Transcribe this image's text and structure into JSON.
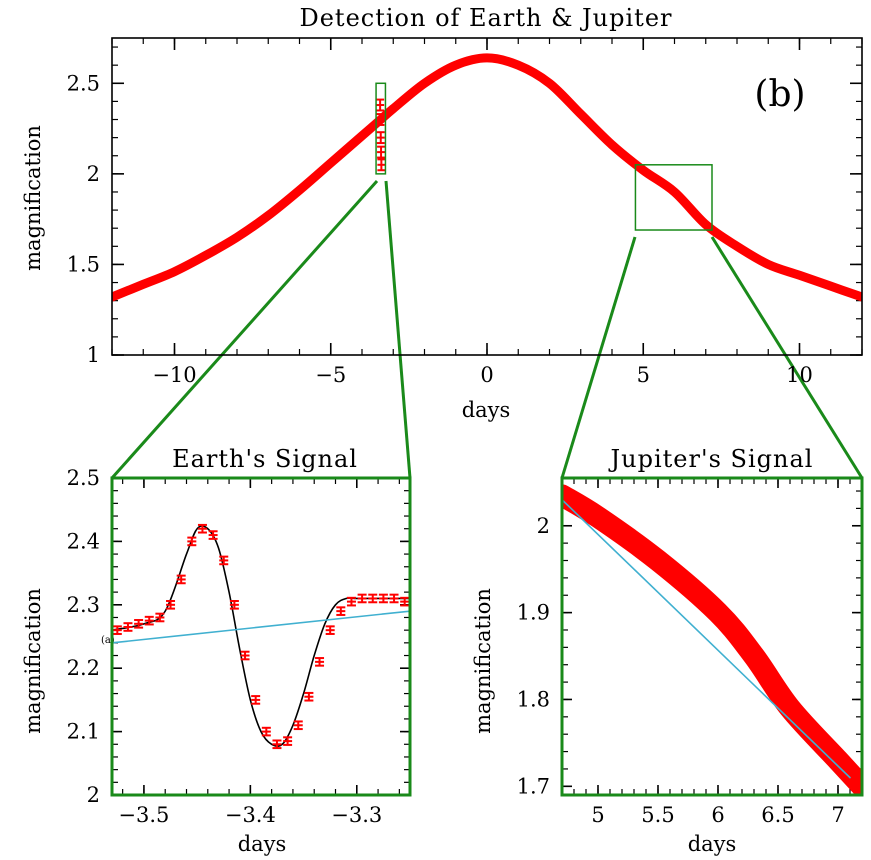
{
  "chart_data": [
    {
      "type": "line",
      "title": "Detection of Earth & Jupiter",
      "panel_label": "(b)",
      "xlabel": "days",
      "ylabel": "magnification",
      "xlim": [
        -12,
        12
      ],
      "ylim": [
        1,
        2.75
      ],
      "xticks": [
        -10,
        -5,
        0,
        5,
        10
      ],
      "xtick_labels": [
        "−10",
        "−5",
        "0",
        "5",
        "10"
      ],
      "yticks": [
        1,
        1.5,
        2,
        2.5
      ],
      "ytick_labels": [
        "1",
        "1.5",
        "2",
        "2.5"
      ],
      "series": [
        {
          "color": "#ff0000",
          "x": [
            -12,
            -11,
            -10,
            -9,
            -8,
            -7,
            -6,
            -5,
            -4,
            -3.4,
            -3,
            -2,
            -1,
            0,
            1,
            2,
            3,
            4,
            5,
            6,
            7,
            8,
            9,
            10,
            11,
            12
          ],
          "y": [
            1.32,
            1.39,
            1.46,
            1.55,
            1.65,
            1.77,
            1.91,
            2.06,
            2.21,
            2.3,
            2.36,
            2.5,
            2.6,
            2.64,
            2.6,
            2.5,
            2.33,
            2.16,
            2.02,
            1.9,
            1.72,
            1.6,
            1.5,
            1.44,
            1.38,
            1.32
          ]
        }
      ],
      "data_points": {
        "x": [
          -3.42,
          -3.41,
          -3.4,
          -3.39,
          -3.38
        ],
        "y": [
          2.38,
          2.3,
          2.2,
          2.12,
          2.05
        ]
      },
      "zoom_boxes": [
        {
          "x": [
            -3.55,
            -3.25
          ],
          "y": [
            2.0,
            2.5
          ]
        },
        {
          "x": [
            4.75,
            7.2
          ],
          "y": [
            1.69,
            2.05
          ]
        }
      ]
    },
    {
      "type": "line",
      "title": "Earth's Signal",
      "annotation": "(a)",
      "xlabel": "days",
      "ylabel": "magnification",
      "xlim": [
        -3.53,
        -3.25
      ],
      "ylim": [
        2.0,
        2.5
      ],
      "xticks": [
        -3.5,
        -3.4,
        -3.3
      ],
      "xtick_labels": [
        "−3.5",
        "−3.4",
        "−3.3"
      ],
      "yticks": [
        2,
        2.1,
        2.2,
        2.3,
        2.4,
        2.5
      ],
      "ytick_labels": [
        "2",
        "2.1",
        "2.2",
        "2.3",
        "2.4",
        "2.5"
      ],
      "series": [
        {
          "color": "#000000",
          "x": [
            -3.53,
            -3.5,
            -3.48,
            -3.46,
            -3.45,
            -3.44,
            -3.43,
            -3.42,
            -3.41,
            -3.4,
            -3.39,
            -3.38,
            -3.37,
            -3.36,
            -3.35,
            -3.34,
            -3.33,
            -3.32,
            -3.31,
            -3.3,
            -3.28,
            -3.25
          ],
          "y": [
            2.26,
            2.27,
            2.29,
            2.38,
            2.42,
            2.42,
            2.39,
            2.32,
            2.23,
            2.15,
            2.1,
            2.08,
            2.08,
            2.11,
            2.16,
            2.22,
            2.27,
            2.3,
            2.31,
            2.31,
            2.31,
            2.31
          ]
        },
        {
          "color": "#40b0d0",
          "x": [
            -3.53,
            -3.25
          ],
          "y": [
            2.24,
            2.29
          ]
        }
      ],
      "data_points": {
        "x": [
          -3.525,
          -3.515,
          -3.505,
          -3.495,
          -3.485,
          -3.475,
          -3.465,
          -3.455,
          -3.445,
          -3.435,
          -3.425,
          -3.415,
          -3.405,
          -3.395,
          -3.385,
          -3.375,
          -3.365,
          -3.355,
          -3.345,
          -3.335,
          -3.325,
          -3.315,
          -3.305,
          -3.295,
          -3.285,
          -3.275,
          -3.265,
          -3.255
        ],
        "y": [
          2.26,
          2.265,
          2.27,
          2.275,
          2.28,
          2.3,
          2.34,
          2.4,
          2.42,
          2.41,
          2.37,
          2.3,
          2.22,
          2.15,
          2.1,
          2.08,
          2.085,
          2.11,
          2.155,
          2.21,
          2.26,
          2.29,
          2.305,
          2.31,
          2.31,
          2.31,
          2.31,
          2.305
        ]
      }
    },
    {
      "type": "line",
      "title": "Jupiter's Signal",
      "xlabel": "days",
      "ylabel": "magnification",
      "xlim": [
        4.7,
        7.2
      ],
      "ylim": [
        1.69,
        2.055
      ],
      "xticks": [
        5,
        5.5,
        6,
        6.5,
        7
      ],
      "xtick_labels": [
        "5",
        "5.5",
        "6",
        "6.5",
        "7"
      ],
      "yticks": [
        1.7,
        1.8,
        1.9,
        2
      ],
      "ytick_labels": [
        "1.7",
        "1.8",
        "1.9",
        "2"
      ],
      "series": [
        {
          "color": "#ff0000",
          "x": [
            4.7,
            5.0,
            5.5,
            6.0,
            6.3,
            6.6,
            7.0,
            7.2
          ],
          "y": [
            2.035,
            2.01,
            1.96,
            1.9,
            1.85,
            1.79,
            1.73,
            1.7
          ]
        },
        {
          "color": "#40b0d0",
          "x": [
            4.7,
            7.1
          ],
          "y": [
            2.03,
            1.71
          ]
        }
      ]
    }
  ]
}
